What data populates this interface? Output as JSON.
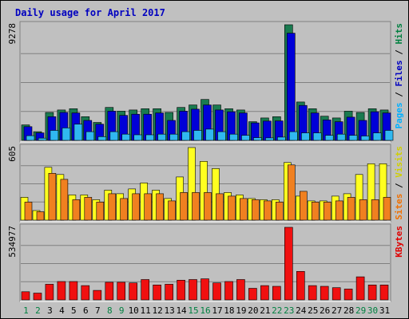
{
  "chart_data": {
    "type": "bar",
    "title": "Daily usage for April 2017",
    "days": [
      "1",
      "2",
      "3",
      "4",
      "5",
      "6",
      "7",
      "8",
      "9",
      "10",
      "11",
      "12",
      "13",
      "14",
      "15",
      "16",
      "17",
      "18",
      "19",
      "20",
      "21",
      "22",
      "23",
      "24",
      "25",
      "26",
      "27",
      "28",
      "29",
      "30",
      "31"
    ],
    "weekend_days": [
      "1",
      "2",
      "8",
      "9",
      "15",
      "16",
      "22",
      "23",
      "29",
      "30"
    ],
    "panels": [
      {
        "id": "hits",
        "ymax_label": "9278",
        "ymax": 9278,
        "legend": [
          {
            "name": "Hits",
            "color": "#008040"
          },
          {
            "name": "Files",
            "color": "#0000c0"
          },
          {
            "name": "Pages",
            "color": "#00b0ff"
          }
        ],
        "series": [
          {
            "name": "Hits",
            "color": "#1a7a50",
            "values": [
              1240,
              700,
              2240,
              2440,
              2540,
              1900,
              1440,
              2640,
              2340,
              2440,
              2540,
              2540,
              2240,
              2640,
              2840,
              3280,
              2840,
              2540,
              2440,
              1500,
              1800,
              1900,
              9278,
              3080,
              2540,
              1940,
              1800,
              2340,
              2240,
              2540,
              2440
            ]
          },
          {
            "name": "Files",
            "color": "#0000d8",
            "values": [
              1100,
              600,
              1900,
              2240,
              2200,
              1600,
              1300,
              2340,
              2000,
              2100,
              2100,
              2200,
              1600,
              2340,
              2500,
              2840,
              2440,
              2300,
              2200,
              1400,
              1550,
              1560,
              8600,
              2800,
              2200,
              1640,
              1500,
              1860,
              1600,
              2300,
              2200
            ]
          },
          {
            "name": "Pages",
            "color": "#30b8f0",
            "values": [
              380,
              180,
              800,
              1000,
              1300,
              700,
              300,
              700,
              500,
              450,
              450,
              500,
              500,
              700,
              800,
              900,
              700,
              500,
              400,
              220,
              200,
              260,
              700,
              600,
              600,
              400,
              500,
              400,
              350,
              600,
              800
            ]
          }
        ]
      },
      {
        "id": "visits",
        "ymax_label": "605",
        "ymax": 605,
        "legend": [
          {
            "name": "Visits",
            "color": "#d0d000"
          },
          {
            "name": "Sites",
            "color": "#f07000"
          }
        ],
        "series": [
          {
            "name": "Visits",
            "color": "#ffff20",
            "values": [
              190,
              80,
              440,
              380,
              210,
              210,
              170,
              250,
              220,
              260,
              310,
              250,
              180,
              360,
              605,
              490,
              430,
              230,
              210,
              180,
              170,
              170,
              480,
              200,
              160,
              160,
              200,
              220,
              380,
              470,
              470
            ]
          },
          {
            "name": "Sites",
            "color": "#f08020",
            "values": [
              150,
              70,
              390,
              340,
              170,
              190,
              150,
              220,
              180,
              220,
              220,
              220,
              160,
              230,
              230,
              230,
              220,
              200,
              180,
              170,
              160,
              150,
              460,
              240,
              150,
              150,
              160,
              190,
              170,
              170,
              190
            ]
          }
        ]
      },
      {
        "id": "kbytes",
        "ymax_label": "534977",
        "ymax": 534977,
        "legend": [
          {
            "name": "KBytes",
            "color": "#e00000"
          }
        ],
        "series": [
          {
            "name": "KBytes",
            "color": "#f01010",
            "values": [
              60000,
              50000,
              115000,
              135000,
              135000,
              105000,
              70000,
              130000,
              130000,
              125000,
              150000,
              110000,
              115000,
              145000,
              150000,
              155000,
              125000,
              135000,
              150000,
              85000,
              105000,
              100000,
              534977,
              210000,
              105000,
              100000,
              90000,
              80000,
              170000,
              110000,
              110000
            ]
          }
        ]
      }
    ],
    "colors": {
      "background": "#c0c0c0",
      "title": "#0000c0",
      "weekday_label": "#000000",
      "weekend_label": "#008040",
      "gridline": "#808080"
    }
  }
}
